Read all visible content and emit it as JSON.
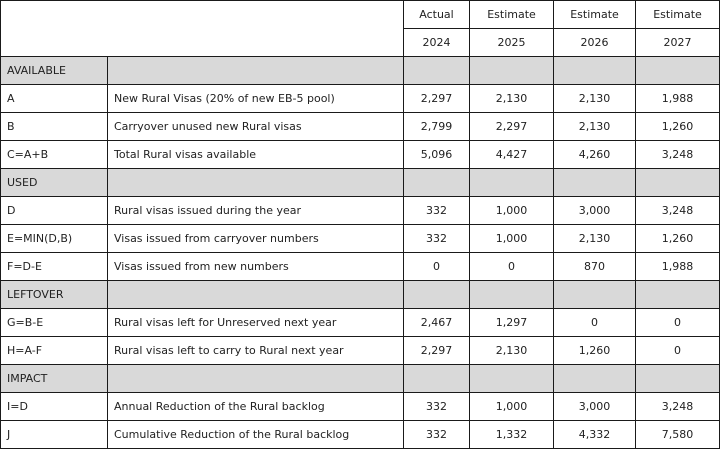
{
  "header": {
    "columns": [
      {
        "type": "Actual",
        "year": "2024"
      },
      {
        "type": "Estimate",
        "year": "2025"
      },
      {
        "type": "Estimate",
        "year": "2026"
      },
      {
        "type": "Estimate",
        "year": "2027"
      }
    ]
  },
  "sections": [
    {
      "title": "AVAILABLE",
      "rows": [
        {
          "code": "A",
          "description": "New Rural Visas (20% of new EB-5 pool)",
          "values": [
            "2,297",
            "2,130",
            "2,130",
            "1,988"
          ]
        },
        {
          "code": "B",
          "description": "Carryover unused new Rural visas",
          "values": [
            "2,799",
            "2,297",
            "2,130",
            "1,260"
          ]
        },
        {
          "code": "C=A+B",
          "description": "Total Rural visas available",
          "values": [
            "5,096",
            "4,427",
            "4,260",
            "3,248"
          ]
        }
      ]
    },
    {
      "title": "USED",
      "rows": [
        {
          "code": "D",
          "description": "Rural visas issued during the year",
          "values": [
            "332",
            "1,000",
            "3,000",
            "3,248"
          ]
        },
        {
          "code": "E=MIN(D,B)",
          "description": "Visas issued from carryover numbers",
          "values": [
            "332",
            "1,000",
            "2,130",
            "1,260"
          ]
        },
        {
          "code": "F=D-E",
          "description": "Visas issued from new numbers",
          "values": [
            "0",
            "0",
            "870",
            "1,988"
          ]
        }
      ]
    },
    {
      "title": "LEFTOVER",
      "rows": [
        {
          "code": "G=B-E",
          "description": "Rural visas left for Unreserved next year",
          "values": [
            "2,467",
            "1,297",
            "0",
            "0"
          ]
        },
        {
          "code": "H=A-F",
          "description": "Rural visas left to carry to Rural next year",
          "values": [
            "2,297",
            "2,130",
            "1,260",
            "0"
          ]
        }
      ]
    },
    {
      "title": "IMPACT",
      "rows": [
        {
          "code": "I=D",
          "description": "Annual Reduction of the Rural backlog",
          "values": [
            "332",
            "1,000",
            "3,000",
            "3,248"
          ]
        },
        {
          "code": "J",
          "description": "Cumulative Reduction of the Rural backlog",
          "values": [
            "332",
            "1,332",
            "4,332",
            "7,580"
          ]
        }
      ]
    }
  ]
}
